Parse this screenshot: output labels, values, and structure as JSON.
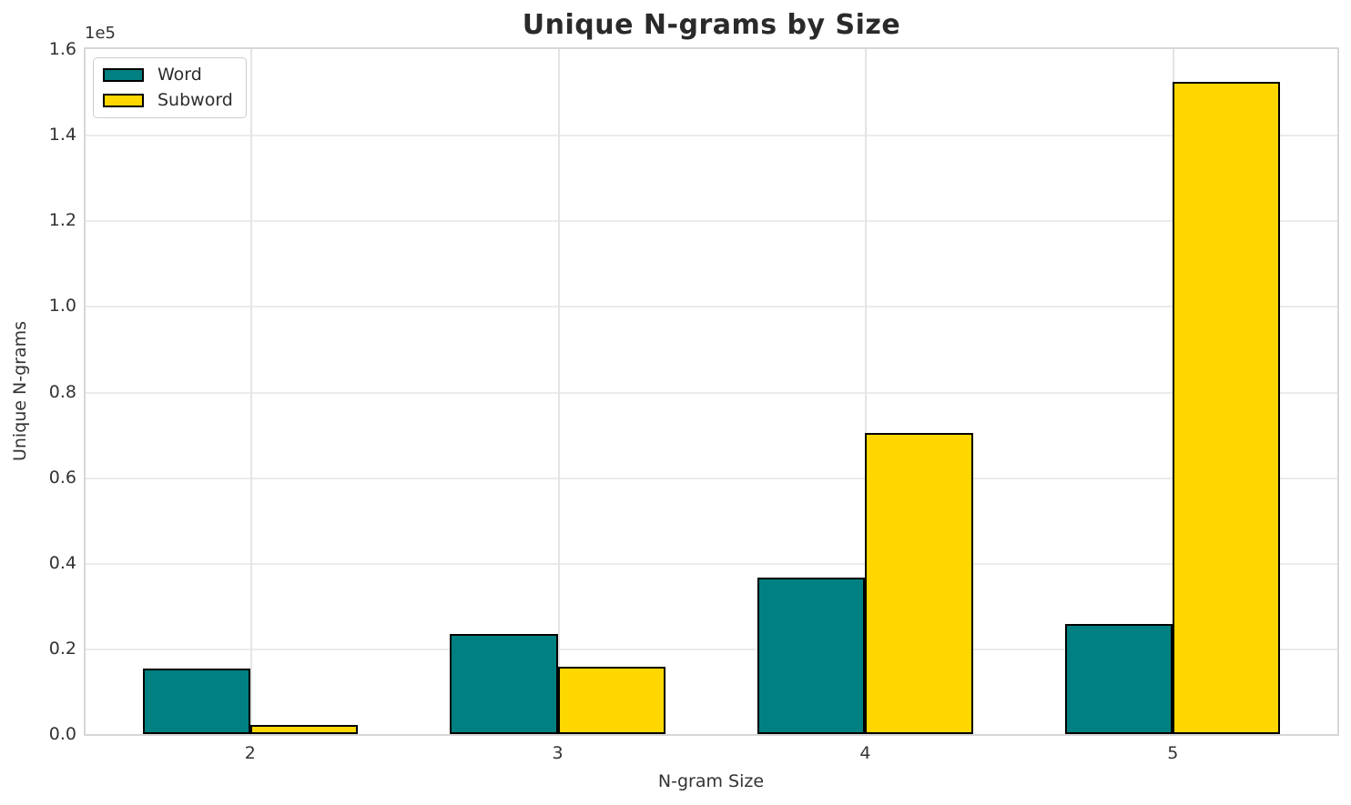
{
  "chart_data": {
    "type": "bar",
    "title": "Unique N-grams by Size",
    "xlabel": "N-gram Size",
    "ylabel": "Unique N-grams",
    "y_offset_text": "1e5",
    "categories": [
      "2",
      "3",
      "4",
      "5"
    ],
    "series": [
      {
        "name": "Word",
        "color": "#008080",
        "edge_color": "#000000",
        "values": [
          15250,
          23300,
          36450,
          25650
        ]
      },
      {
        "name": "Subword",
        "color": "#FFD700",
        "edge_color": "#000000",
        "values": [
          2100,
          15700,
          70400,
          152400
        ]
      }
    ],
    "ylim": [
      0,
      160000
    ],
    "ytick_step": 20000,
    "ytick_labels": [
      "0.0",
      "0.2",
      "0.4",
      "0.6",
      "0.8",
      "1.0",
      "1.2",
      "1.4",
      "1.6"
    ],
    "grid": true,
    "legend_position": "upper left",
    "bar_width_fraction": 0.35,
    "colors": {
      "grid_h": "#ebebeb",
      "grid_v": "#e4e4e4",
      "spine": "#d7d7d7",
      "tick_text": "#333333",
      "title_text": "#2a2a2a"
    }
  }
}
